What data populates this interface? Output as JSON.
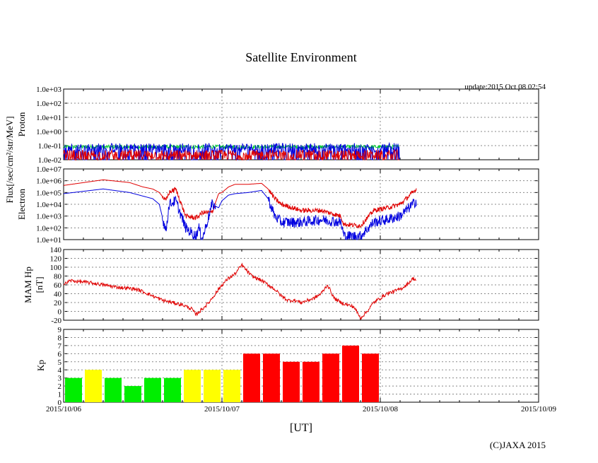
{
  "title": "Satellite Environment",
  "update": "update:2015 Oct 08 02:54",
  "xlabel": "[UT]",
  "copyright": "(C)JAXA 2015",
  "flux_label": "Flux[/sec/cm²/str/MeV]",
  "x_ticks": [
    "2015/10/06",
    "2015/10/07",
    "2015/10/08",
    "2015/10/09"
  ],
  "colors": {
    "red": "#e00000",
    "blue": "#0000e0",
    "green": "#00cc33",
    "yellow": "#ffff00",
    "kp_green": "#00ee00",
    "kp_red": "#ff0000"
  },
  "chart_data": [
    {
      "type": "line",
      "panel": "proton",
      "ylabel": "Proton",
      "yscale": "log",
      "ylim": [
        0.01,
        1000
      ],
      "yticks": [
        "1.0e-02",
        "1.0e-01",
        "1.0e+00",
        "1.0e+01",
        "1.0e+02",
        "1.0e+03"
      ],
      "xlim": [
        "2015/10/06 00:00",
        "2015/10/09 00:00"
      ],
      "series": [
        {
          "color": "green",
          "level_range": [
            0.06,
            0.11
          ]
        },
        {
          "color": "blue",
          "level_range": [
            0.03,
            0.15
          ]
        },
        {
          "color": "red",
          "level_range": [
            0.01,
            0.05
          ]
        }
      ],
      "data_end": "2015/10/08 02:54"
    },
    {
      "type": "line",
      "panel": "electron",
      "ylabel": "Electron",
      "yscale": "log",
      "ylim": [
        10,
        10000000
      ],
      "yticks": [
        "1.0e+01",
        "1.0e+02",
        "1.0e+03",
        "1.0e+04",
        "1.0e+05",
        "1.0e+06",
        "1.0e+07"
      ],
      "series": [
        {
          "color": "red",
          "hours": [
            0,
            6,
            10,
            12,
            13.5,
            14.5,
            15.5,
            16,
            17,
            18.5,
            20,
            20.5,
            21,
            22.5,
            23.5,
            24,
            25,
            26,
            28,
            30,
            31,
            32,
            33,
            36,
            39,
            42,
            42.5,
            45,
            47,
            49,
            51,
            53.5
          ],
          "values": [
            400000,
            1200000,
            700000,
            300000,
            200000,
            100000,
            20000,
            100000,
            200000,
            1000,
            700,
            1000,
            2000,
            2000,
            80000,
            100000,
            300000,
            500000,
            500000,
            600000,
            200000,
            30000,
            10000,
            3000,
            3000,
            1000,
            200,
            150,
            3000,
            5000,
            10000,
            200000
          ]
        },
        {
          "color": "blue",
          "hours": [
            0,
            6,
            10,
            12,
            13.5,
            14.5,
            15.5,
            16,
            17,
            18.5,
            20,
            20.5,
            21,
            22.5,
            23.5,
            24,
            25,
            26,
            28,
            30,
            31,
            32,
            33,
            36,
            39,
            42,
            42.5,
            45,
            47,
            49,
            51,
            53.5
          ],
          "values": [
            80000,
            200000,
            100000,
            50000,
            30000,
            10000,
            50,
            10000,
            20000,
            100,
            20,
            100,
            10,
            10000,
            5000,
            20000,
            60000,
            80000,
            100000,
            150000,
            30000,
            1000,
            300,
            300,
            500,
            300,
            20,
            20,
            300,
            500,
            1000,
            20000
          ]
        }
      ],
      "data_end": "2015/10/08 02:54"
    },
    {
      "type": "line",
      "panel": "mam_hp",
      "ylabel": "MAM Hp",
      "ylabel2": "[nT]",
      "ylim": [
        -20,
        140
      ],
      "yticks": [
        -20,
        0,
        20,
        40,
        60,
        80,
        100,
        120,
        140
      ],
      "series": [
        {
          "color": "red",
          "hours": [
            0,
            1,
            2,
            4,
            6,
            8,
            10,
            11,
            12,
            13.5,
            15,
            16.5,
            18,
            19.5,
            20,
            21,
            22,
            23,
            24,
            25,
            26,
            26.5,
            27,
            28.5,
            30,
            32,
            33,
            34,
            35,
            36,
            37,
            38,
            39,
            40,
            41,
            42,
            43,
            44,
            45,
            46,
            47,
            48,
            49,
            50,
            51,
            52,
            53,
            53.5
          ],
          "values": [
            60,
            70,
            68,
            65,
            60,
            55,
            52,
            50,
            45,
            35,
            25,
            20,
            15,
            5,
            -8,
            5,
            20,
            40,
            60,
            75,
            85,
            95,
            105,
            80,
            70,
            50,
            35,
            25,
            25,
            20,
            25,
            30,
            40,
            60,
            30,
            20,
            15,
            10,
            -15,
            0,
            20,
            30,
            40,
            45,
            50,
            60,
            75,
            70
          ]
        }
      ],
      "data_end": "2015/10/08 02:54"
    },
    {
      "type": "bar",
      "panel": "kp",
      "ylabel": "Kp",
      "ylim": [
        0,
        9
      ],
      "yticks": [
        0,
        1,
        2,
        3,
        4,
        5,
        6,
        7,
        8,
        9
      ],
      "categories": [
        "10/06 00-03",
        "10/06 03-06",
        "10/06 06-09",
        "10/06 09-12",
        "10/06 12-15",
        "10/06 15-18",
        "10/06 18-21",
        "10/06 21-24",
        "10/07 00-03",
        "10/07 03-06",
        "10/07 06-09",
        "10/07 09-12",
        "10/07 12-15",
        "10/07 15-18",
        "10/07 18-21",
        "10/07 21-24"
      ],
      "values": [
        3,
        4,
        3,
        2,
        3,
        3,
        4,
        4,
        4,
        6,
        6,
        5,
        5,
        6,
        7,
        6
      ],
      "colors": [
        "kp_green",
        "yellow",
        "kp_green",
        "kp_green",
        "kp_green",
        "kp_green",
        "yellow",
        "yellow",
        "yellow",
        "kp_red",
        "kp_red",
        "kp_red",
        "kp_red",
        "kp_red",
        "kp_red",
        "kp_red"
      ]
    }
  ]
}
